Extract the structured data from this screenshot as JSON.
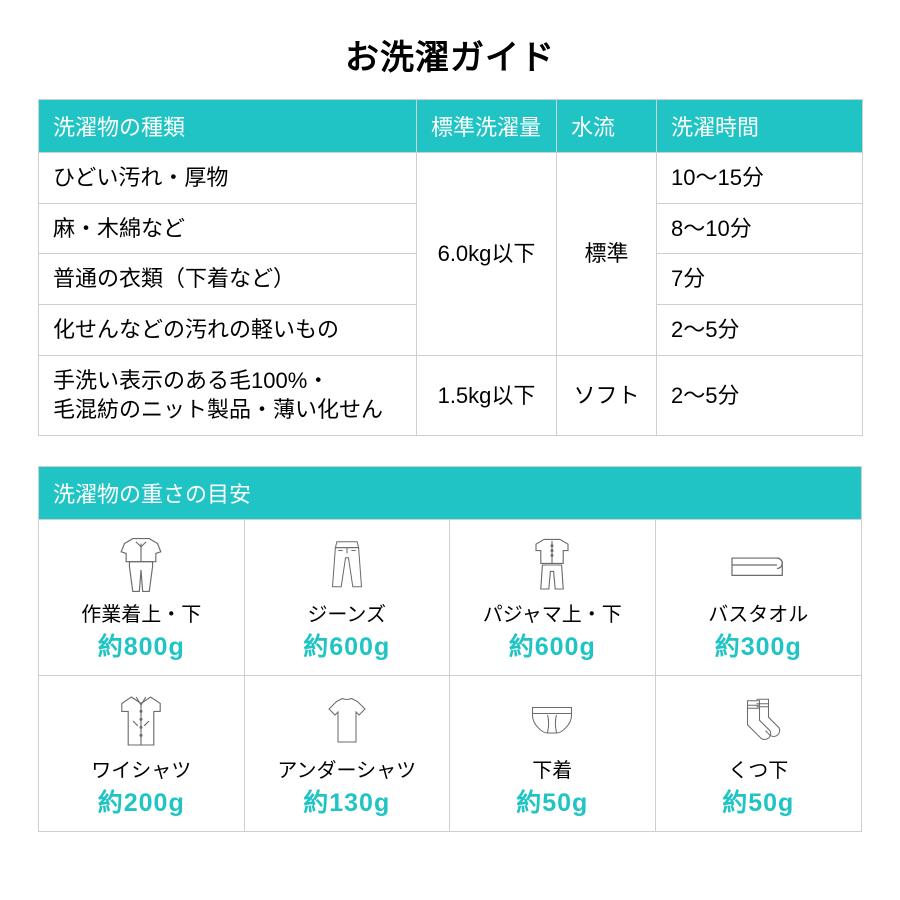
{
  "colors": {
    "accent": "#20c4c4",
    "border": "#cfcfcf",
    "text": "#000000",
    "iconStroke": "#6b6b6b",
    "background": "#ffffff"
  },
  "title": "お洗濯ガイド",
  "guideTable": {
    "headers": {
      "type": "洗濯物の種類",
      "amount": "標準洗濯量",
      "flow": "水流",
      "time": "洗濯時間"
    },
    "rows": [
      {
        "type": "ひどい汚れ・厚物",
        "time": "10〜15分"
      },
      {
        "type": "麻・木綿など",
        "time": "8〜10分"
      },
      {
        "type": "普通の衣類（下着など）",
        "time": "7分"
      },
      {
        "type": "化せんなどの汚れの軽いもの",
        "time": "2〜5分"
      },
      {
        "type": "手洗い表示のある毛100%・\n毛混紡のニット製品・薄い化せん",
        "time": "2〜5分"
      }
    ],
    "merged": {
      "amount1": "6.0kg以下",
      "flow1": "標準",
      "amount2": "1.5kg以下",
      "flow2": "ソフト"
    }
  },
  "weightSection": {
    "header": "洗濯物の重さの目安",
    "items": [
      {
        "label": "作業着上・下",
        "weight": "約800g",
        "icon": "worksuit"
      },
      {
        "label": "ジーンズ",
        "weight": "約600g",
        "icon": "jeans"
      },
      {
        "label": "パジャマ上・下",
        "weight": "約600g",
        "icon": "pajama"
      },
      {
        "label": "バスタオル",
        "weight": "約300g",
        "icon": "towel"
      },
      {
        "label": "ワイシャツ",
        "weight": "約200g",
        "icon": "dressshirt"
      },
      {
        "label": "アンダーシャツ",
        "weight": "約130g",
        "icon": "tshirt"
      },
      {
        "label": "下着",
        "weight": "約50g",
        "icon": "underwear"
      },
      {
        "label": "くつ下",
        "weight": "約50g",
        "icon": "socks"
      }
    ]
  }
}
